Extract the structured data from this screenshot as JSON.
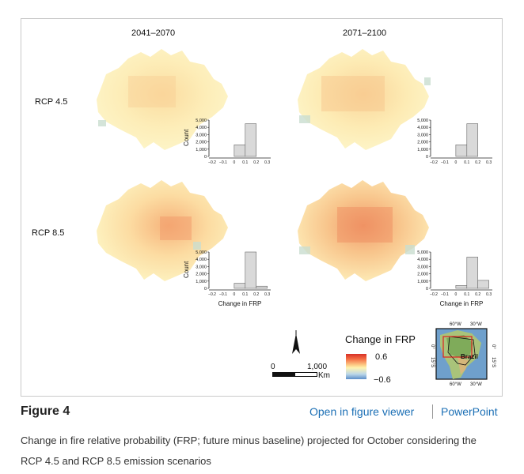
{
  "figure": {
    "col_headers": [
      "2041–2070",
      "2071–2100"
    ],
    "row_headers": [
      "RCP 4.5",
      "RCP 8.5"
    ],
    "hist_ylabel": "Count",
    "hist_xlabel": "Change in FRP",
    "hist_yticks": [
      "5,000",
      "4,000",
      "3,000",
      "2,000",
      "1,000",
      "0"
    ],
    "hist_xticks": [
      "−0.2",
      "−0.1",
      "0",
      "0.1",
      "0.2",
      "0.3"
    ],
    "legend": {
      "title": "Change in FRP",
      "max": "0.6",
      "min": "−0.6"
    },
    "scale": {
      "zero": "0",
      "dist": "1,000",
      "unit": "Km"
    },
    "inset": {
      "top_lon_1": "60°W",
      "top_lon_2": "30°W",
      "bottom_lon_1": "60°W",
      "bottom_lon_2": "30°W",
      "lat_0": "0°",
      "lat_15": "15°S",
      "country": "Brazil"
    },
    "colors": {
      "low": "#5b8ec9",
      "mid": "#fff3b0",
      "high": "#d73027",
      "bar": "#d9d9d9"
    }
  },
  "caption": {
    "label": "Figure 4",
    "open_viewer": "Open in figure viewer",
    "powerpoint": "PowerPoint",
    "text": "Change in fire relative probability (FRP; future minus baseline) projected for October considering the RCP 4.5 and RCP 8.5 emission scenarios"
  },
  "chart_data": [
    {
      "type": "bar",
      "title": "RCP 4.5, 2041–2070",
      "categories": [
        "−0.2",
        "−0.1",
        "0",
        "0.1",
        "0.2",
        "0.3"
      ],
      "values": [
        0,
        0,
        1600,
        4500,
        0,
        0
      ],
      "xlabel": "",
      "ylabel": "Count",
      "ylim": [
        0,
        5000
      ]
    },
    {
      "type": "bar",
      "title": "RCP 4.5, 2071–2100",
      "categories": [
        "−0.2",
        "−0.1",
        "0",
        "0.1",
        "0.2",
        "0.3"
      ],
      "values": [
        0,
        0,
        1600,
        4500,
        0,
        0
      ],
      "xlabel": "",
      "ylabel": "",
      "ylim": [
        0,
        5000
      ]
    },
    {
      "type": "bar",
      "title": "RCP 8.5, 2041–2070",
      "categories": [
        "−0.2",
        "−0.1",
        "0",
        "0.1",
        "0.2",
        "0.3"
      ],
      "values": [
        0,
        0,
        700,
        5000,
        300,
        0
      ],
      "xlabel": "Change in FRP",
      "ylabel": "Count",
      "ylim": [
        0,
        5000
      ]
    },
    {
      "type": "bar",
      "title": "RCP 8.5, 2071–2100",
      "categories": [
        "−0.2",
        "−0.1",
        "0",
        "0.1",
        "0.2",
        "0.3"
      ],
      "values": [
        0,
        0,
        400,
        4300,
        1100,
        0
      ],
      "xlabel": "Change in FRP",
      "ylabel": "",
      "ylim": [
        0,
        5000
      ]
    }
  ]
}
